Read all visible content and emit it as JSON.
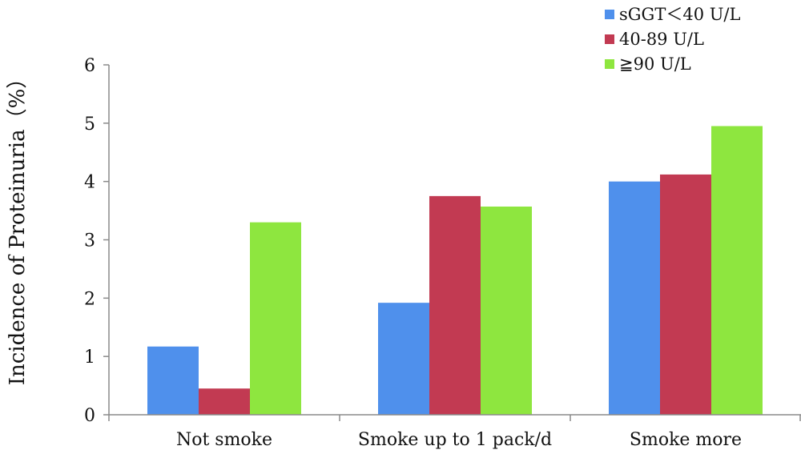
{
  "chart_data": {
    "type": "bar",
    "title": "",
    "xlabel": "",
    "ylabel": "Incidence of Proteinuria（%）",
    "ylim": [
      0,
      6
    ],
    "yticks": [
      "0",
      "1",
      "2",
      "3",
      "4",
      "5",
      "6"
    ],
    "grid": false,
    "legend_position": "top-right",
    "categories": [
      "Not smoke",
      "Smoke up to 1 pack/d",
      "Smoke more"
    ],
    "series": [
      {
        "name": "sGGT＜40 U/L",
        "color": "#4f90ec",
        "values": [
          1.17,
          1.92,
          4.0
        ]
      },
      {
        "name": "40-89 U/L",
        "color": "#c23a52",
        "values": [
          0.45,
          3.75,
          4.12
        ]
      },
      {
        "name": "≧90 U/L",
        "color": "#8ee63f",
        "values": [
          3.3,
          3.57,
          4.95
        ]
      }
    ]
  }
}
